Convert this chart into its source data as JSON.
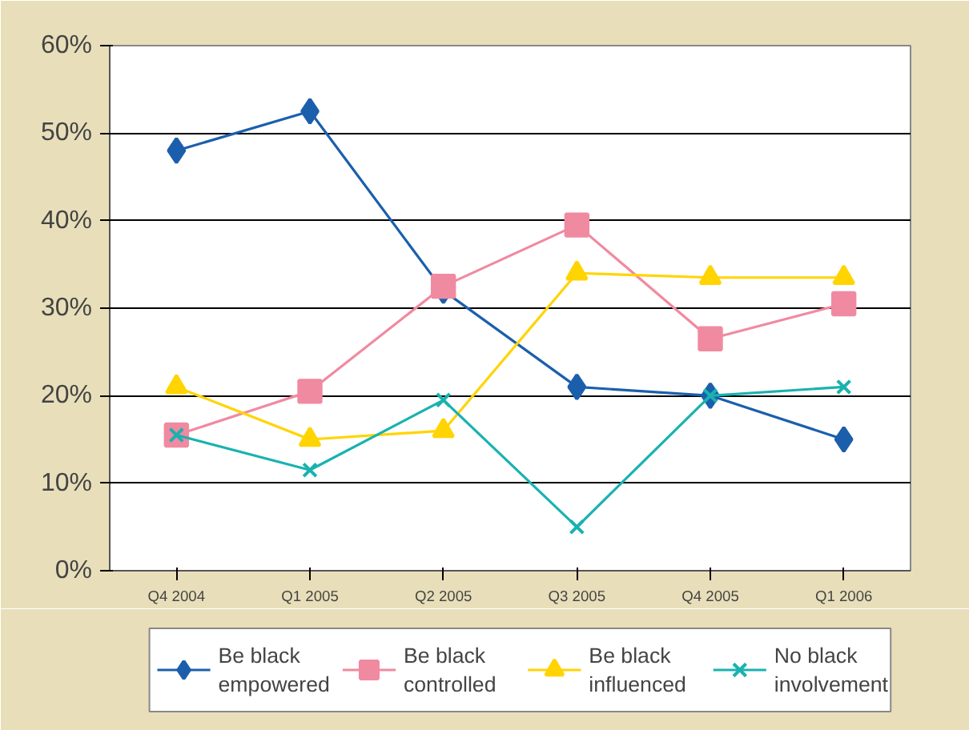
{
  "chart_data": {
    "type": "line",
    "categories": [
      "Q4 2004",
      "Q1 2005",
      "Q2 2005",
      "Q3 2005",
      "Q4 2005",
      "Q1 2006"
    ],
    "series": [
      {
        "name": "Be black empowered",
        "color": "#1b5fac",
        "marker": "diamond",
        "values": [
          48,
          52.5,
          32,
          21,
          20,
          15
        ]
      },
      {
        "name": "Be black controlled",
        "color": "#f08aa0",
        "marker": "square",
        "values": [
          15.5,
          20.5,
          32.5,
          39.5,
          26.5,
          30.5
        ]
      },
      {
        "name": "Be black influenced",
        "color": "#ffd400",
        "marker": "triangle",
        "values": [
          21,
          15,
          16,
          34,
          33.5,
          33.5
        ]
      },
      {
        "name": "No black involvement",
        "color": "#19b2b0",
        "marker": "cross",
        "values": [
          15.5,
          11.5,
          19.5,
          5,
          20,
          21
        ]
      }
    ],
    "ylim": [
      0,
      60
    ],
    "yticks": [
      {
        "value": 0,
        "label": "0%"
      },
      {
        "value": 10,
        "label": "10%"
      },
      {
        "value": 20,
        "label": "20%"
      },
      {
        "value": 30,
        "label": "30%"
      },
      {
        "value": 40,
        "label": "40%"
      },
      {
        "value": 50,
        "label": "50%"
      },
      {
        "value": 60,
        "label": "60%"
      }
    ],
    "grid": "y",
    "legend": "bottom"
  }
}
